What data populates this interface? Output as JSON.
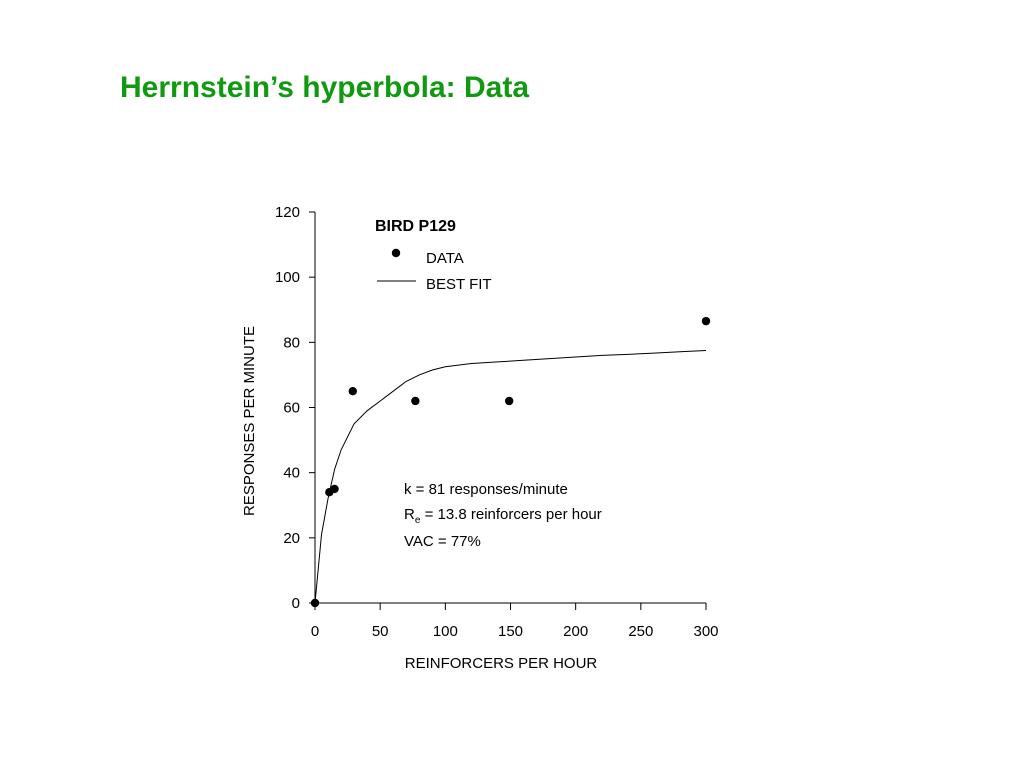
{
  "slide": {
    "title": "Herrnstein’s hyperbola:  Data"
  },
  "colors": {
    "title": "#119911",
    "ink": "#000000"
  },
  "chart_data": {
    "type": "scatter",
    "title": "",
    "xlabel": "REINFORCERS PER HOUR",
    "ylabel": "RESPONSES PER MINUTE",
    "xlim": [
      0,
      300
    ],
    "ylim": [
      0,
      120
    ],
    "xticks": [
      0,
      50,
      100,
      150,
      200,
      250,
      300
    ],
    "yticks": [
      0,
      20,
      40,
      60,
      80,
      100,
      120
    ],
    "grid": false,
    "legend": {
      "title": "BIRD P129",
      "entries": [
        {
          "label": "DATA",
          "marker": "circle"
        },
        {
          "label": "BEST FIT",
          "marker": "line"
        }
      ]
    },
    "series": [
      {
        "name": "DATA",
        "type": "scatter",
        "x": [
          0,
          11,
          15,
          29,
          77,
          149,
          300
        ],
        "y": [
          0,
          34,
          35,
          65,
          62,
          62,
          86.5
        ]
      },
      {
        "name": "BEST FIT",
        "type": "line",
        "x": [
          0,
          5,
          10,
          15,
          20,
          30,
          40,
          50,
          60,
          70,
          80,
          90,
          100,
          120,
          140,
          160,
          180,
          200,
          220,
          240,
          260,
          280,
          300
        ],
        "y": [
          0,
          21,
          32,
          41,
          47,
          55,
          59,
          62,
          65,
          68,
          70,
          71.5,
          72.5,
          73.5,
          74,
          74.5,
          75,
          75.5,
          76,
          76.3,
          76.7,
          77.1,
          77.5
        ]
      }
    ],
    "annotations": {
      "k_line": "k = 81 responses/minute",
      "re_symbol": "R",
      "re_subscript": "e",
      "re_rest": " = 13.8 reinforcers per hour",
      "vac_line": "VAC = 77%"
    }
  }
}
